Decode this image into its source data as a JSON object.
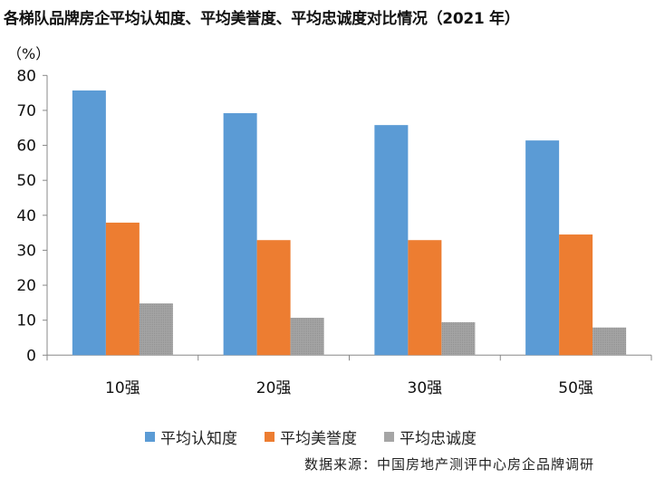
{
  "chart_data": {
    "type": "bar",
    "title": "各梯队品牌房企平均认知度、平均美誉度、平均忠诚度对比情况（2021 年）",
    "ylabel": "（%）",
    "xlabel": "",
    "categories": [
      "10强",
      "20强",
      "30强",
      "50强"
    ],
    "series": [
      {
        "name": "平均认知度",
        "color": "#5B9BD5",
        "values": [
          75.7,
          69.2,
          65.8,
          61.4
        ]
      },
      {
        "name": "平均美誉度",
        "color": "#ED7D31",
        "values": [
          37.9,
          32.9,
          32.9,
          34.5
        ]
      },
      {
        "name": "平均忠诚度",
        "color": "#A5A5A5",
        "values": [
          14.8,
          10.7,
          9.4,
          7.9
        ]
      }
    ],
    "ylim": [
      0,
      80
    ],
    "yticks": [
      0,
      10,
      20,
      30,
      40,
      50,
      60,
      70,
      80
    ],
    "grid": false,
    "legend": "bottom"
  },
  "source": "数据来源：中国房地产测评中心房企品牌调研"
}
